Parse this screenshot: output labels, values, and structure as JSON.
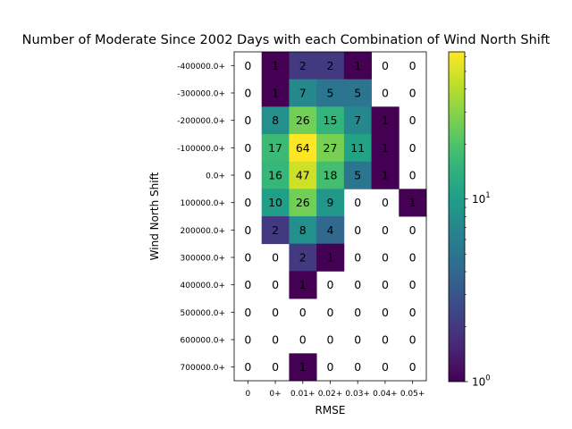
{
  "chart_data": {
    "type": "heatmap",
    "title": "Number of Moderate Since 2002 Days with each Combination of Wind North Shift",
    "xlabel": "RMSE",
    "ylabel": "Wind North Shift",
    "x_categories": [
      "0",
      "0+",
      "0.01+",
      "0.02+",
      "0.03+",
      "0.04+",
      "0.05+"
    ],
    "y_categories": [
      "-400000.0+",
      "-300000.0+",
      "-200000.0+",
      "-100000.0+",
      "0.0+",
      "100000.0+",
      "200000.0+",
      "300000.0+",
      "400000.0+",
      "500000.0+",
      "600000.0+",
      "700000.0+"
    ],
    "values": [
      [
        0,
        1,
        2,
        2,
        1,
        0,
        0
      ],
      [
        0,
        1,
        7,
        5,
        5,
        0,
        0
      ],
      [
        0,
        8,
        26,
        15,
        7,
        1,
        0
      ],
      [
        0,
        17,
        64,
        27,
        11,
        1,
        0
      ],
      [
        0,
        16,
        47,
        18,
        5,
        1,
        0
      ],
      [
        0,
        10,
        26,
        9,
        0,
        0,
        1
      ],
      [
        0,
        2,
        8,
        4,
        0,
        0,
        0
      ],
      [
        0,
        0,
        2,
        1,
        0,
        0,
        0
      ],
      [
        0,
        0,
        1,
        0,
        0,
        0,
        0
      ],
      [
        0,
        0,
        0,
        0,
        0,
        0,
        0
      ],
      [
        0,
        0,
        0,
        0,
        0,
        0,
        0
      ],
      [
        0,
        0,
        1,
        0,
        0,
        0,
        0
      ]
    ],
    "zero_cells": "blank",
    "colormap": "viridis",
    "color_scale": "log",
    "colorbar": {
      "range": [
        1,
        64
      ],
      "tick_labels": [
        {
          "value": 1,
          "base": "10",
          "exp": "0"
        },
        {
          "value": 10,
          "base": "10",
          "exp": "1"
        }
      ]
    },
    "grid": false
  }
}
